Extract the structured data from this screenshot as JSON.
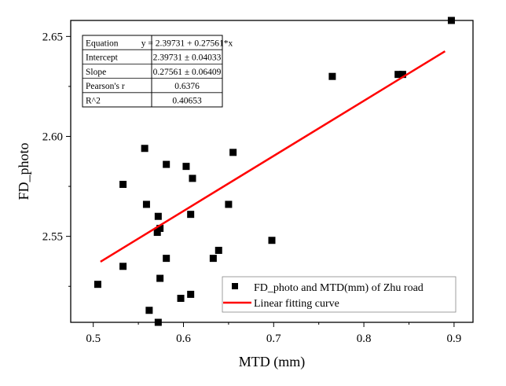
{
  "chart_data": {
    "type": "scatter",
    "xlabel": "MTD (mm)",
    "ylabel": "FD_photo",
    "xlim": [
      0.475,
      0.921
    ],
    "ylim": [
      2.507,
      2.658
    ],
    "xticks": [
      0.5,
      0.6,
      0.7,
      0.8,
      0.9
    ],
    "xtick_labels": [
      "0.5",
      "0.6",
      "0.7",
      "0.8",
      "0.9"
    ],
    "yticks": [
      2.55,
      2.6,
      2.65
    ],
    "ytick_labels": [
      "2.55",
      "2.60",
      "2.65"
    ],
    "grid": false,
    "legend_position": "bottom-right",
    "series": [
      {
        "name": "FD_photo and MTD(mm) of Zhu road",
        "type": "scatter",
        "color": "#000000",
        "x": [
          0.505,
          0.533,
          0.533,
          0.557,
          0.559,
          0.562,
          0.572,
          0.571,
          0.574,
          0.572,
          0.581,
          0.581,
          0.574,
          0.603,
          0.61,
          0.608,
          0.597,
          0.608,
          0.655,
          0.65,
          0.639,
          0.633,
          0.698,
          0.765,
          0.838,
          0.843,
          0.897
        ],
        "y": [
          2.526,
          2.576,
          2.535,
          2.594,
          2.566,
          2.513,
          2.56,
          2.552,
          2.554,
          2.507,
          2.586,
          2.539,
          2.529,
          2.585,
          2.579,
          2.561,
          2.519,
          2.521,
          2.592,
          2.566,
          2.543,
          2.539,
          2.548,
          2.63,
          2.631,
          2.631,
          2.658
        ]
      },
      {
        "name": "Linear fitting curve",
        "type": "line",
        "color": "#ff0000",
        "x": [
          0.508,
          0.89
        ],
        "y": [
          2.53732,
          2.6426
        ]
      }
    ],
    "fit_table": [
      [
        "Equation",
        "y = 2.39731 + 0.27561*x"
      ],
      [
        "Intercept",
        "2.39731 ± 0.04033"
      ],
      [
        "Slope",
        "0.27561 ± 0.06409"
      ],
      [
        "Pearson's r",
        "0.6376"
      ],
      [
        "R^2",
        "0.40653"
      ]
    ]
  }
}
